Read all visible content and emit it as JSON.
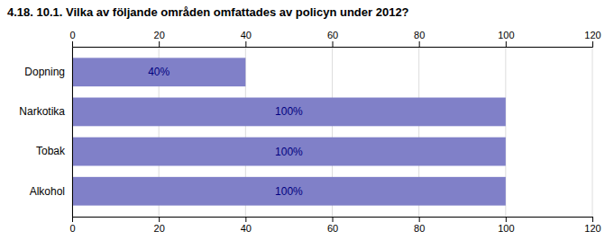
{
  "chart_data": {
    "type": "bar",
    "orientation": "horizontal",
    "title": "4.18. 10.1. Vilka av följande områden omfattades av policyn under 2012?",
    "categories": [
      "Alkohol",
      "Tobak",
      "Narkotika",
      "Dopning"
    ],
    "values": [
      100,
      100,
      100,
      40
    ],
    "value_labels": [
      "100%",
      "100%",
      "100%",
      "40%"
    ],
    "data_labels": true,
    "color": "#8080C8",
    "xlim": [
      0,
      120
    ],
    "xticks": [
      0,
      20,
      40,
      60,
      80,
      100,
      120
    ],
    "grid": true
  }
}
